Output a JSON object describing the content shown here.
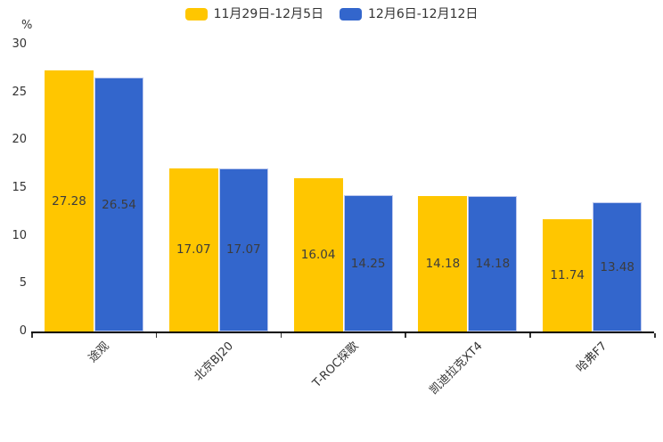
{
  "chart_data": {
    "type": "bar",
    "title": "",
    "categories": [
      "途观",
      "北京BJ20",
      "T-ROC探歌",
      "凯迪拉克XT4",
      "哈弗F7"
    ],
    "series": [
      {
        "name": "11月29日-12月5日",
        "color": "#FFC600",
        "values": [
          27.28,
          17.07,
          16.04,
          14.18,
          11.74
        ]
      },
      {
        "name": "12月6日-12月12日",
        "color": "#3366CC",
        "values": [
          26.54,
          17.07,
          14.25,
          14.18,
          13.48
        ]
      }
    ],
    "xlabel": "",
    "ylabel": "%",
    "ylim": [
      0,
      30
    ],
    "yticks": [
      0,
      5,
      10,
      15,
      20,
      25,
      30
    ],
    "grid": false,
    "legend_position": "top",
    "value_label_position": "inside-center",
    "axis_color": "#000000",
    "label_color": "#3c3c3c"
  }
}
